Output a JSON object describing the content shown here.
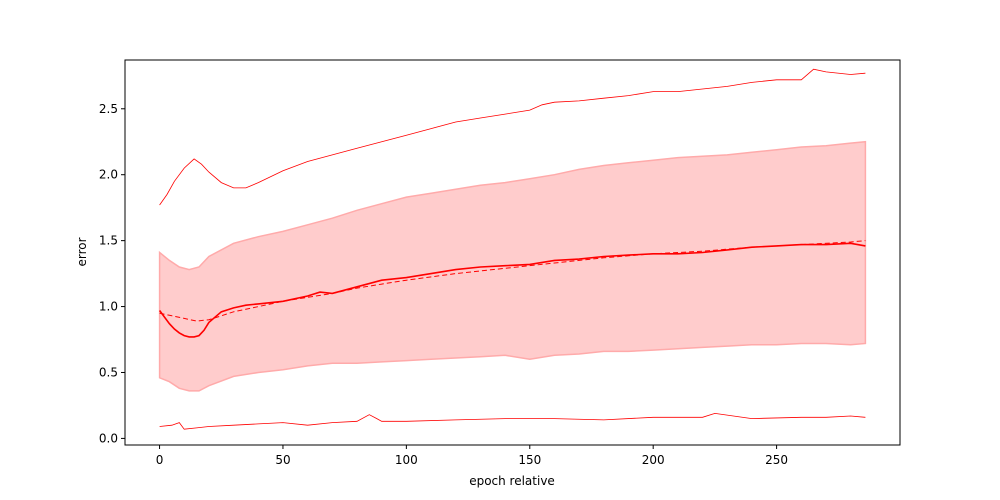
{
  "chart_data": {
    "type": "line",
    "title": "",
    "xlabel": "epoch relative",
    "ylabel": "error",
    "xlim": [
      -14,
      300
    ],
    "ylim": [
      -0.05,
      2.87
    ],
    "xticks": [
      0,
      50,
      100,
      150,
      200,
      250
    ],
    "yticks": [
      0.0,
      0.5,
      1.0,
      1.5,
      2.0,
      2.5
    ],
    "grid": false,
    "colors": {
      "line": "#ff0000",
      "band_fill": "#ffcccc",
      "band_edge": "#ffaaaa"
    },
    "series": [
      {
        "role": "band",
        "x": [
          0,
          4,
          8,
          12,
          16,
          20,
          30,
          40,
          50,
          60,
          70,
          80,
          90,
          100,
          110,
          120,
          130,
          140,
          150,
          160,
          170,
          180,
          190,
          200,
          210,
          220,
          230,
          240,
          250,
          260,
          270,
          280,
          286
        ],
        "lower": [
          0.46,
          0.43,
          0.38,
          0.36,
          0.36,
          0.4,
          0.47,
          0.5,
          0.52,
          0.55,
          0.57,
          0.57,
          0.58,
          0.59,
          0.6,
          0.61,
          0.62,
          0.63,
          0.6,
          0.63,
          0.64,
          0.66,
          0.66,
          0.67,
          0.68,
          0.69,
          0.7,
          0.71,
          0.71,
          0.72,
          0.72,
          0.71,
          0.72
        ],
        "upper": [
          1.41,
          1.35,
          1.3,
          1.28,
          1.3,
          1.38,
          1.48,
          1.53,
          1.57,
          1.62,
          1.67,
          1.73,
          1.78,
          1.83,
          1.86,
          1.89,
          1.92,
          1.94,
          1.97,
          2.0,
          2.04,
          2.07,
          2.09,
          2.11,
          2.13,
          2.14,
          2.15,
          2.17,
          2.19,
          2.21,
          2.22,
          2.24,
          2.25
        ]
      },
      {
        "role": "mean",
        "style": "solid",
        "x": [
          0,
          2,
          4,
          6,
          8,
          10,
          12,
          14,
          16,
          18,
          20,
          25,
          30,
          35,
          40,
          50,
          60,
          65,
          70,
          80,
          90,
          100,
          110,
          120,
          130,
          140,
          150,
          160,
          170,
          180,
          190,
          200,
          210,
          220,
          230,
          240,
          250,
          260,
          270,
          280,
          286
        ],
        "y": [
          0.97,
          0.92,
          0.87,
          0.83,
          0.8,
          0.78,
          0.77,
          0.77,
          0.78,
          0.82,
          0.88,
          0.96,
          0.99,
          1.01,
          1.02,
          1.04,
          1.08,
          1.11,
          1.1,
          1.15,
          1.2,
          1.22,
          1.25,
          1.28,
          1.3,
          1.31,
          1.32,
          1.35,
          1.36,
          1.38,
          1.39,
          1.4,
          1.4,
          1.41,
          1.43,
          1.45,
          1.46,
          1.47,
          1.47,
          1.48,
          1.46
        ]
      },
      {
        "role": "trend",
        "style": "dashed",
        "x": [
          0,
          5,
          10,
          15,
          20,
          25,
          30,
          40,
          50,
          60,
          70,
          80,
          90,
          100,
          120,
          140,
          160,
          180,
          200,
          220,
          240,
          260,
          280,
          286
        ],
        "y": [
          0.95,
          0.93,
          0.91,
          0.89,
          0.9,
          0.93,
          0.96,
          1.0,
          1.04,
          1.07,
          1.1,
          1.14,
          1.17,
          1.2,
          1.25,
          1.29,
          1.33,
          1.37,
          1.4,
          1.42,
          1.45,
          1.47,
          1.49,
          1.5
        ]
      },
      {
        "role": "max",
        "style": "thin",
        "x": [
          0,
          3,
          6,
          10,
          14,
          17,
          20,
          25,
          30,
          35,
          40,
          50,
          60,
          70,
          80,
          90,
          100,
          110,
          120,
          130,
          140,
          150,
          155,
          160,
          170,
          180,
          190,
          200,
          210,
          220,
          230,
          240,
          250,
          260,
          265,
          270,
          280,
          286
        ],
        "y": [
          1.77,
          1.85,
          1.95,
          2.05,
          2.12,
          2.08,
          2.02,
          1.94,
          1.9,
          1.9,
          1.94,
          2.03,
          2.1,
          2.15,
          2.2,
          2.25,
          2.3,
          2.35,
          2.4,
          2.43,
          2.46,
          2.49,
          2.53,
          2.55,
          2.56,
          2.58,
          2.6,
          2.63,
          2.63,
          2.65,
          2.67,
          2.7,
          2.72,
          2.72,
          2.8,
          2.78,
          2.76,
          2.77
        ]
      },
      {
        "role": "min",
        "style": "thin",
        "x": [
          0,
          5,
          8,
          10,
          15,
          20,
          30,
          40,
          50,
          60,
          70,
          80,
          85,
          88,
          90,
          100,
          120,
          140,
          160,
          180,
          200,
          220,
          225,
          240,
          260,
          270,
          280,
          286
        ],
        "y": [
          0.09,
          0.1,
          0.12,
          0.07,
          0.08,
          0.09,
          0.1,
          0.11,
          0.12,
          0.1,
          0.12,
          0.13,
          0.18,
          0.15,
          0.13,
          0.13,
          0.14,
          0.15,
          0.15,
          0.14,
          0.16,
          0.16,
          0.19,
          0.15,
          0.16,
          0.16,
          0.17,
          0.16
        ]
      }
    ]
  }
}
